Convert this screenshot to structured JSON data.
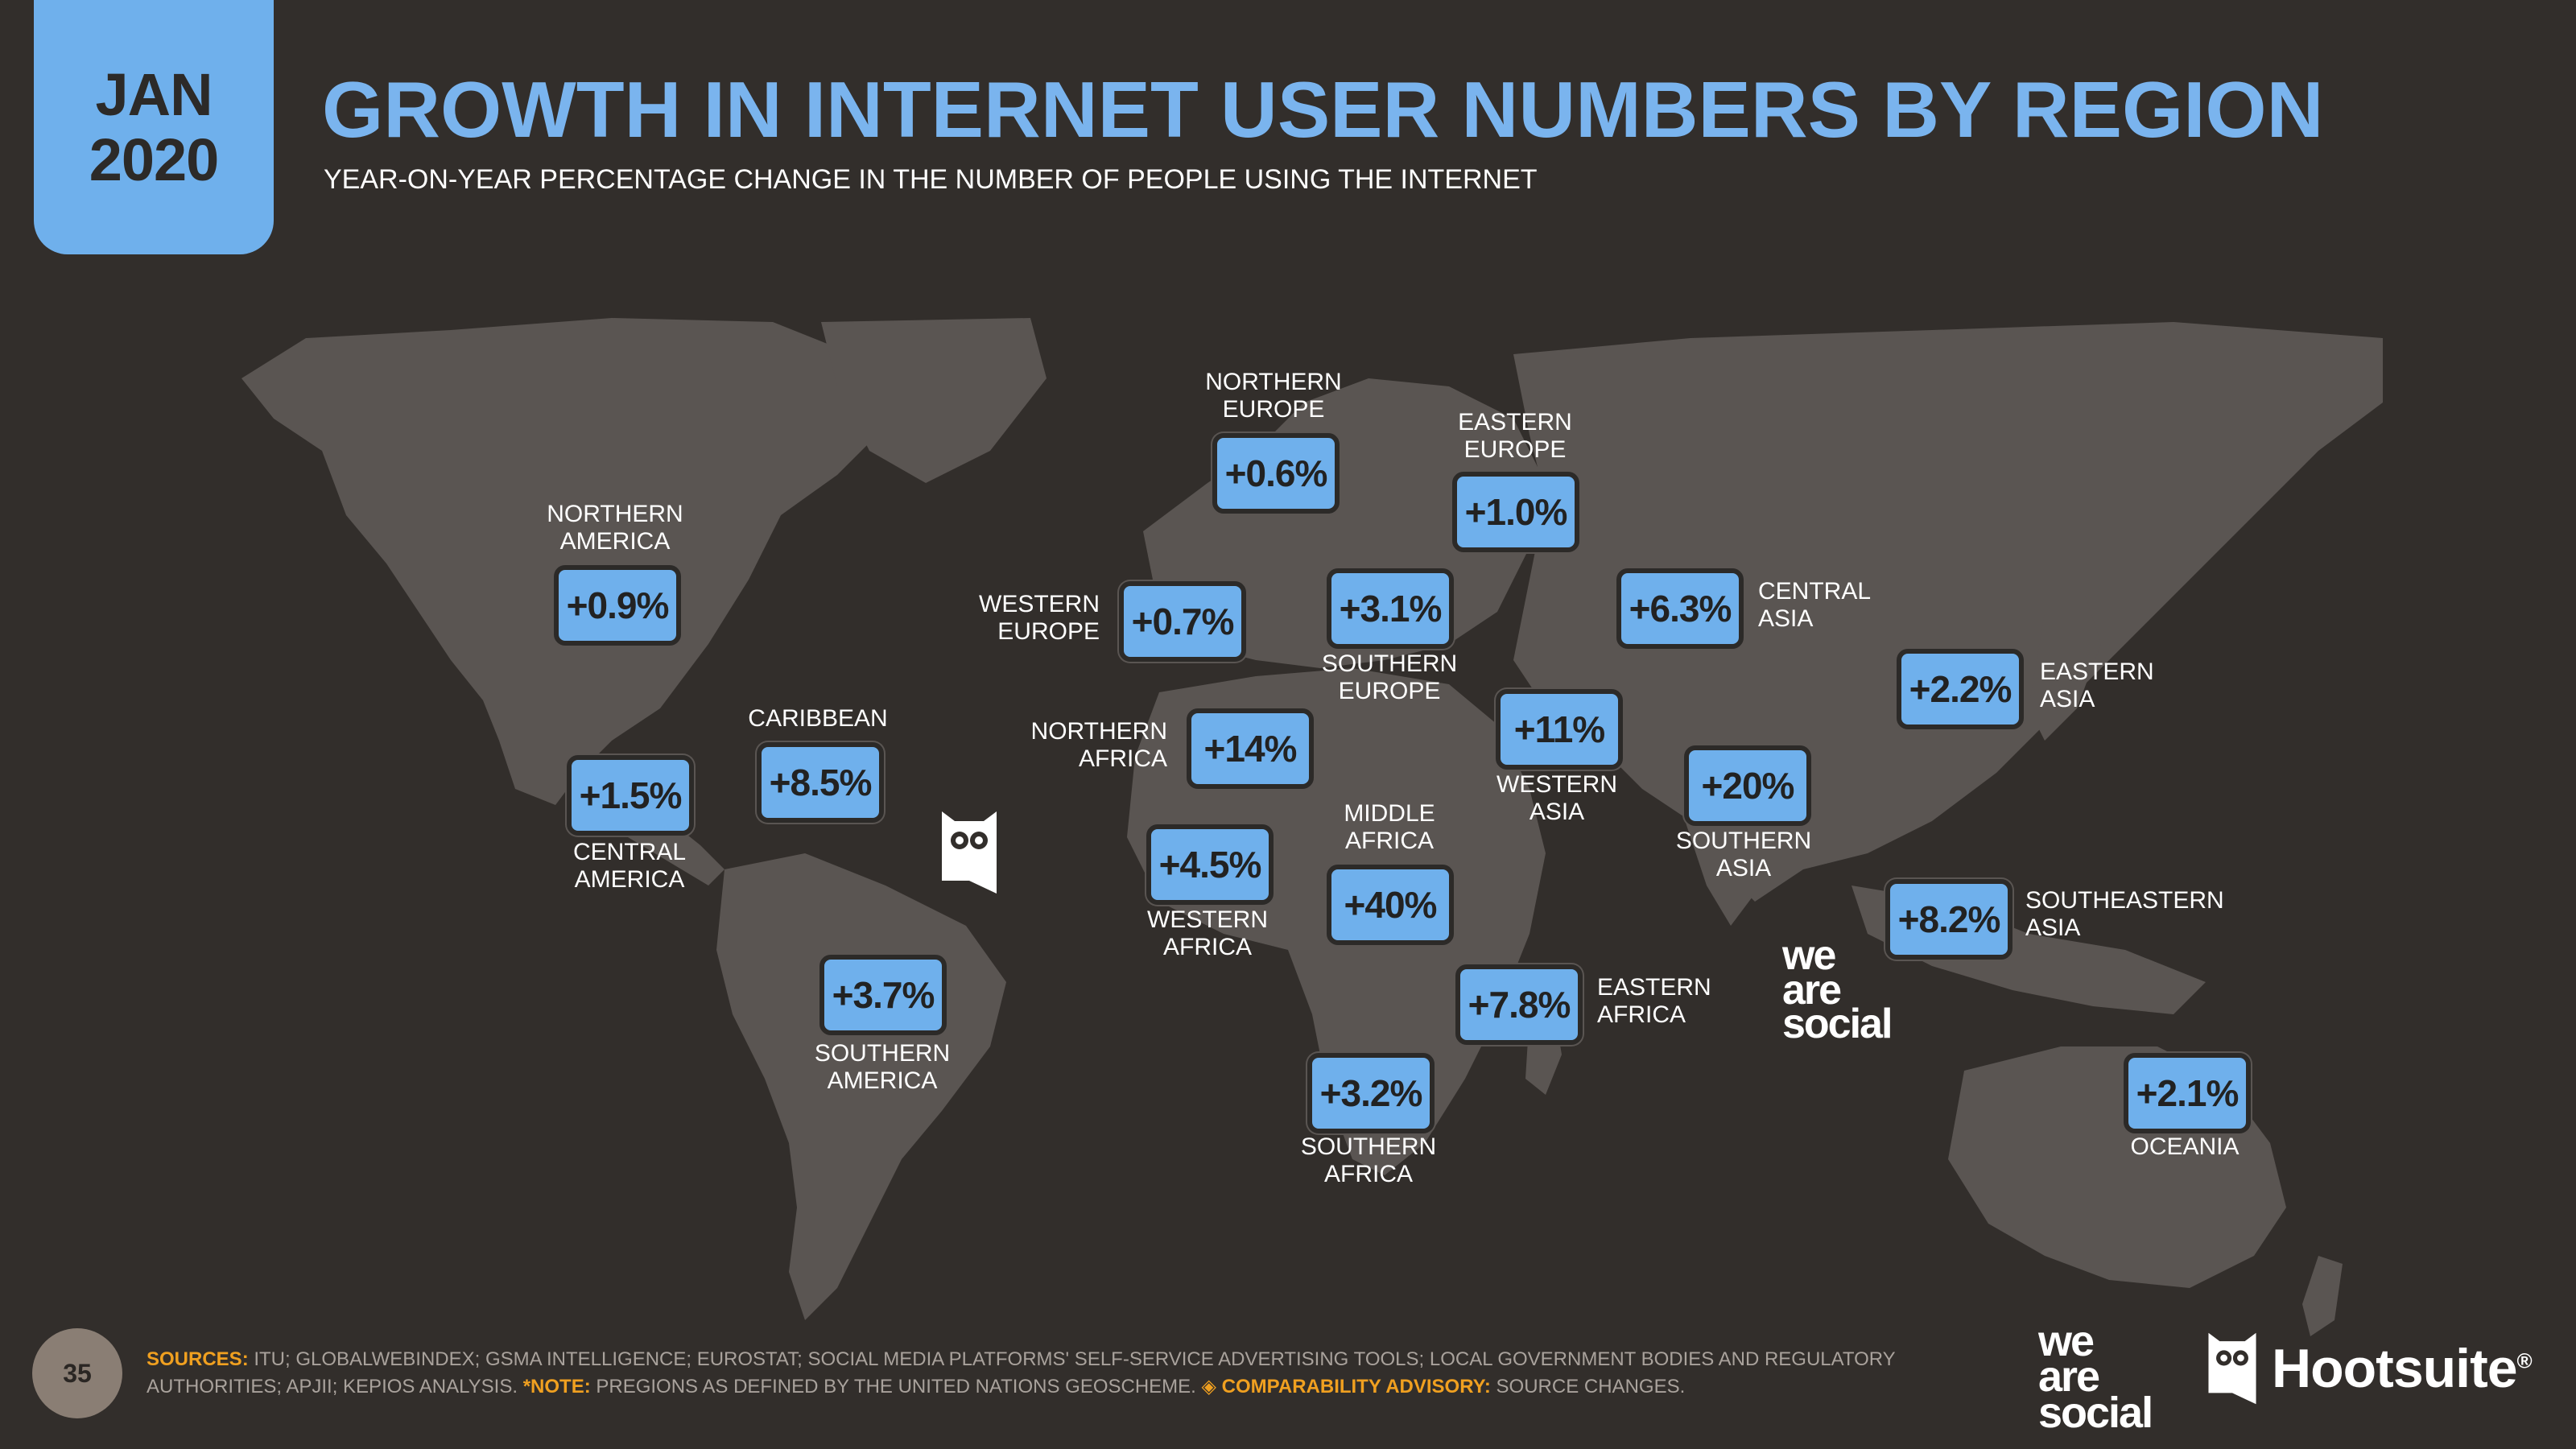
{
  "header": {
    "date_month": "JAN",
    "date_year": "2020",
    "title": "GROWTH IN INTERNET USER NUMBERS BY REGION",
    "subtitle": "YEAR-ON-YEAR PERCENTAGE CHANGE IN THE NUMBER OF PEOPLE USING THE INTERNET"
  },
  "regions": {
    "northern_america": {
      "label": "NORTHERN\nAMERICA",
      "value": "+0.9%"
    },
    "central_america": {
      "label": "CENTRAL\nAMERICA",
      "value": "+1.5%"
    },
    "caribbean": {
      "label": "CARIBBEAN",
      "value": "+8.5%"
    },
    "southern_america": {
      "label": "SOUTHERN\nAMERICA",
      "value": "+3.7%"
    },
    "northern_europe": {
      "label": "NORTHERN\nEUROPE",
      "value": "+0.6%"
    },
    "eastern_europe": {
      "label": "EASTERN\nEUROPE",
      "value": "+1.0%"
    },
    "western_europe": {
      "label": "WESTERN\nEUROPE",
      "value": "+0.7%"
    },
    "southern_europe": {
      "label": "SOUTHERN\nEUROPE",
      "value": "+3.1%"
    },
    "central_asia": {
      "label": "CENTRAL\nASIA",
      "value": "+6.3%"
    },
    "eastern_asia": {
      "label": "EASTERN\nASIA",
      "value": "+2.2%"
    },
    "northern_africa": {
      "label": "NORTHERN\nAFRICA",
      "value": "+14%"
    },
    "western_asia": {
      "label": "WESTERN\nASIA",
      "value": "+11%"
    },
    "southern_asia": {
      "label": "SOUTHERN\nASIA",
      "value": "+20%"
    },
    "western_africa": {
      "label": "WESTERN\nAFRICA",
      "value": "+4.5%"
    },
    "middle_africa": {
      "label": "MIDDLE\nAFRICA",
      "value": "+40%"
    },
    "southeastern_asia": {
      "label": "SOUTHEASTERN\nASIA",
      "value": "+8.2%"
    },
    "eastern_africa": {
      "label": "EASTERN\nAFRICA",
      "value": "+7.8%"
    },
    "southern_africa": {
      "label": "SOUTHERN\nAFRICA",
      "value": "+3.2%"
    },
    "oceania": {
      "label": "OCEANIA",
      "value": "+2.1%"
    }
  },
  "footer": {
    "page_number": "35",
    "sources_label": "SOURCES:",
    "sources_text": " ITU; GLOBALWEBINDEX; GSMA INTELLIGENCE; EUROSTAT; SOCIAL MEDIA PLATFORMS' SELF-SERVICE ADVERTISING TOOLS; LOCAL GOVERNMENT BODIES AND REGULATORY AUTHORITIES; APJII; KEPIOS ANALYSIS. ",
    "note_label": "*NOTE:",
    "note_text": " PREGIONS AS DEFINED BY THE UNITED NATIONS GEOSCHEME. ",
    "advisory_label": "◈ COMPARABILITY ADVISORY:",
    "advisory_text": " SOURCE CHANGES."
  },
  "logos": {
    "wearesocial_line1": "we",
    "wearesocial_line2": "are",
    "wearesocial_line3": "social",
    "hootsuite": "Hootsuite",
    "hootsuite_mark": "®"
  },
  "colors": {
    "background": "#322e2b",
    "accent": "#6fb0ec",
    "land": "#5a5552",
    "highlight": "#f0a020"
  }
}
